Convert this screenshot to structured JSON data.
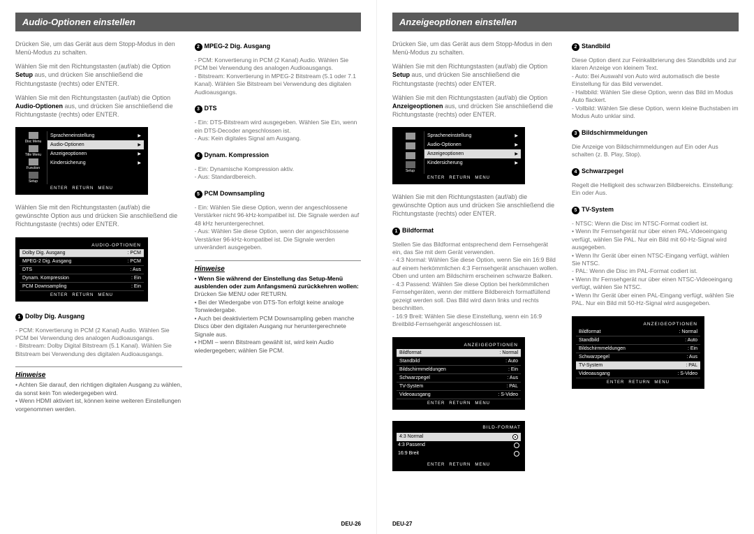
{
  "left_page": {
    "header": "Audio-Optionen einstellen",
    "colA": {
      "step1": "Drücken Sie, um das Gerät aus dem Stopp-Modus in den Menü-Modus zu schalten.",
      "step2a": "Wählen Sie mit den Richtungstasten (auf/ab) die Option",
      "step2b": "Setup",
      "step2c": "aus, und drücken Sie anschließend die Richtungstaste (rechts) oder ENTER.",
      "step3a": "Wählen Sie mit den Richtungstasten (auf/ab) die Option",
      "step3b": "Audio-Optionen",
      "step3c": "aus, und drücken Sie anschließend die Richtungstaste (rechts) oder ENTER.",
      "osd1": {
        "rows": [
          {
            "icon": "Disc Menu",
            "label": "Spracheneinstellung",
            "value": ""
          },
          {
            "icon": "Title Menu",
            "label": "Audio-Optionen",
            "value": "",
            "sel": true
          },
          {
            "icon": "Function",
            "label": "Anzeigeoptionen",
            "value": ""
          },
          {
            "icon": "",
            "label": "Kindersicherung",
            "value": ":"
          }
        ],
        "setup_label": "Setup",
        "footer": [
          "ENTER",
          "RETURN",
          "MENU"
        ]
      },
      "step4": "Wählen Sie mit den Richtungstasten (auf/ab) die gewünschte Option aus und drücken Sie anschließend die Richtungstaste (rechts) oder ENTER.",
      "osd2": {
        "title": "AUDIO-OPTIONEN",
        "rows": [
          {
            "l": "Dolby Dig. Ausgang",
            "r": ": PCM",
            "sel": true
          },
          {
            "l": "MPEG-2 Dig. Ausgang",
            "r": ": PCM"
          },
          {
            "l": "DTS",
            "r": ": Aus"
          },
          {
            "l": "Dynam. Kompression",
            "r": ": Ein"
          },
          {
            "l": "PCM Downsampling",
            "r": ": Ein"
          }
        ],
        "footer": [
          "ENTER",
          "RETURN",
          "MENU"
        ]
      },
      "sub1": {
        "n": "1",
        "t": "Dolby Dig. Ausgang"
      },
      "sub1_body": "- PCM: Konvertierung in PCM (2 Kanal) Audio. Wählen Sie PCM bei Verwendung des analogen Audioausgangs.\n- Bitstream: Dolby Digital Bitstream (5.1 Kanal). Wählen Sie Bitstream bei Verwendung des digitalen Audioausgangs.",
      "note_title": "Hinweise",
      "note_body": "• Achten Sie darauf, den richtigen digitalen Ausgang zu wählen, da sonst kein Ton wiedergegeben wird.\n• Wenn HDMI aktiviert ist, können keine weiteren Einstellungen vorgenommen werden."
    },
    "colB": {
      "sub2": {
        "n": "2",
        "t": "MPEG-2 Dig. Ausgang"
      },
      "sub2_body": "- PCM: Konvertierung in PCM (2 Kanal) Audio. Wählen Sie PCM bei Verwendung des analogen Audioausgangs.\n- Bitstream: Konvertierung in MPEG-2 Bitstream (5.1 oder 7.1 Kanal). Wählen Sie Bitstream bei Verwendung des digitalen Audioausgangs.",
      "sub3": {
        "n": "3",
        "t": "DTS"
      },
      "sub3_body": "- Ein: DTS-Bitstream wird ausgegeben. Wählen Sie Ein, wenn ein DTS-Decoder angeschlossen ist.\n- Aus: Kein digitales Signal am Ausgang.",
      "sub4": {
        "n": "4",
        "t": "Dynam. Kompression"
      },
      "sub4_body": "- Ein: Dynamische Kompression aktiv.\n- Aus: Standardbereich.",
      "sub5": {
        "n": "5",
        "t": "PCM Downsampling"
      },
      "sub5_body": "- Ein: Wählen Sie diese Option, wenn der angeschlossene Verstärker nicht 96-kHz-kompatibel ist. Die Signale werden auf 48 kHz heruntergerechnet.\n- Aus: Wählen Sie diese Option, wenn der angeschlossene Verstärker 96-kHz-kompatibel ist. Die Signale werden unverändert ausgegeben.",
      "note_title": "Hinweise",
      "note_intro": "• Wenn Sie während der Einstellung das Setup-Menü ausblenden oder zum Anfangsmenü zurückkehren wollen:",
      "note_b1": "Drücken Sie MENU oder RETURN.",
      "note_b2": "• Bei der Wiedergabe von DTS-Ton erfolgt keine analoge Tonwiedergabe.",
      "note_b3": "• Auch bei deaktiviertem PCM Downsampling geben manche Discs über den digitalen Ausgang nur heruntergerechnete Signale aus.",
      "note_b4": "• HDMI – wenn Bitstream gewählt ist, wird kein Audio wiedergegeben; wählen Sie PCM."
    },
    "pagenum": "DEU-26"
  },
  "right_page": {
    "header": "Anzeigeoptionen einstellen",
    "colA": {
      "step1": "Drücken Sie, um das Gerät aus dem Stopp-Modus in den Menü-Modus zu schalten.",
      "step2a": "Wählen Sie mit den Richtungstasten (auf/ab) die Option",
      "step2b": "Setup",
      "step2c": "aus, und drücken Sie anschließend die Richtungstaste (rechts) oder ENTER.",
      "step3a": "Wählen Sie mit den Richtungstasten (auf/ab) die Option",
      "step3b": "Anzeigeoptionen",
      "step3c": "aus, und drücken Sie anschließend die Richtungstaste (rechts) oder ENTER.",
      "osd1": {
        "rows": [
          {
            "icon": "",
            "label": "Spracheneinstellung",
            "value": ""
          },
          {
            "icon": "",
            "label": "Audio-Optionen",
            "value": ""
          },
          {
            "icon": "",
            "label": "Anzeigeoptionen",
            "value": "",
            "sel": true
          },
          {
            "icon": "",
            "label": "Kindersicherung",
            "value": ":"
          }
        ],
        "setup_label": "Setup",
        "footer": [
          "ENTER",
          "RETURN",
          "MENU"
        ]
      },
      "step4": "Wählen Sie mit den Richtungstasten (auf/ab) die gewünschte Option aus und drücken Sie anschließend die Richtungstaste (rechts) oder ENTER.",
      "sub1": {
        "n": "1",
        "t": "Bildformat"
      },
      "sub1_body": "Stellen Sie das Bildformat entsprechend dem Fernsehgerät ein, das Sie mit dem Gerät verwenden.\n- 4:3 Normal: Wählen Sie diese Option, wenn Sie ein 16:9 Bild auf einem herkömmlichen 4:3 Fernsehgerät anschauen wollen. Oben und unten am Bildschirm erscheinen schwarze Balken.\n- 4:3 Passend: Wählen Sie diese Option bei herkömmlichen Fernsehgeräten, wenn der mittlere Bildbereich formatfüllend gezeigt werden soll. Das Bild wird dann links und rechts beschnitten.\n- 16:9 Breit: Wählen Sie diese Einstellung, wenn ein 16:9 Breitbild-Fernsehgerät angeschlossen ist.",
      "osd2": {
        "title": "ANZEIGEOPTIONEN",
        "rows": [
          {
            "l": "Bildformat",
            "r": ": Normal",
            "sel": true
          },
          {
            "l": "Standbild",
            "r": ": Auto"
          },
          {
            "l": "Bildschirmmeldungen",
            "r": ": Ein"
          },
          {
            "l": "Schwarzpegel",
            "r": ": Aus"
          },
          {
            "l": "TV-System",
            "r": ": PAL"
          },
          {
            "l": "Videoausgang",
            "r": ": S-Video"
          }
        ],
        "footer": [
          "ENTER",
          "RETURN",
          "MENU"
        ]
      },
      "osd3": {
        "title": "BILD-FORMAT",
        "rows": [
          {
            "l": "4:3 Normal",
            "sel": true
          },
          {
            "l": "4:3 Passend"
          },
          {
            "l": "16:9 Breit"
          }
        ],
        "footer": [
          "ENTER",
          "RETURN",
          "MENU"
        ]
      }
    },
    "colB": {
      "sub2": {
        "n": "2",
        "t": "Standbild"
      },
      "sub2_body": "Diese Option dient zur Feinkalibrierung des Standbilds und zur klaren Anzeige von kleinem Text.\n- Auto: Bei Auswahl von Auto wird automatisch die beste Einstellung für das Bild verwendet.\n- Halbbild: Wählen Sie diese Option, wenn das Bild im Modus Auto flackert.\n- Vollbild: Wählen Sie diese Option, wenn kleine Buchstaben im Modus Auto unklar sind.",
      "sub3": {
        "n": "3",
        "t": "Bildschirmmeldungen"
      },
      "sub3_body": "Die Anzeige von Bildschirmmeldungen auf Ein oder Aus schalten (z. B. Play, Stop).",
      "sub4": {
        "n": "4",
        "t": "Schwarzpegel"
      },
      "sub4_body": "Regelt die Helligkeit des schwarzen Bildbereichs. Einstellung: Ein oder Aus.",
      "sub5": {
        "n": "5",
        "t": "TV-System"
      },
      "sub5_body": "- NTSC: Wenn die Disc im NTSC-Format codiert ist.\n  • Wenn Ihr Fernsehgerät nur über einen PAL-Videoeingang verfügt, wählen Sie PAL. Nur ein Bild mit 60-Hz-Signal wird ausgegeben.\n  • Wenn Ihr Gerät über einen NTSC-Eingang verfügt, wählen Sie NTSC.\n- PAL: Wenn die Disc im PAL-Format codiert ist.\n  • Wenn Ihr Fernsehgerät nur über einen NTSC-Videoeingang verfügt, wählen Sie NTSC.\n  • Wenn Ihr Gerät über einen PAL-Eingang verfügt, wählen Sie PAL. Nur ein Bild mit 50-Hz-Signal wird ausgegeben.",
      "osd": {
        "title": "ANZEIGEOPTIONEN",
        "rows": [
          {
            "l": "Bildformat",
            "r": ": Normal"
          },
          {
            "l": "Standbild",
            "r": ": Auto"
          },
          {
            "l": "Bildschirmmeldungen",
            "r": ": Ein"
          },
          {
            "l": "Schwarzpegel",
            "r": ": Aus"
          },
          {
            "l": "TV-System",
            "r": ": PAL",
            "sel": true
          },
          {
            "l": "Videoausgang",
            "r": ": S-Video"
          }
        ],
        "footer": [
          "ENTER",
          "RETURN",
          "MENU"
        ]
      }
    },
    "pagenum": "DEU-27"
  }
}
